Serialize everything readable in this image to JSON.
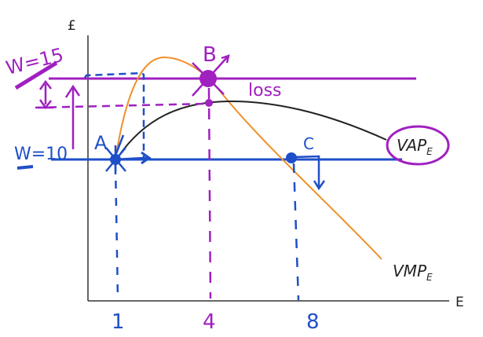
{
  "axes": {
    "y_label": "£",
    "x_label": "E"
  },
  "wage_high": {
    "label": "W=15",
    "color": "#a020c0"
  },
  "wage_low": {
    "label": "W=10",
    "color": "#1f4fc8"
  },
  "points": {
    "a": "A",
    "b": "B",
    "c": "C"
  },
  "loss_label": "loss",
  "curves": {
    "vap": {
      "label": "VAP",
      "subscript": "E",
      "color": "#222222"
    },
    "vmp": {
      "label": "VMP",
      "subscript": "E",
      "color": "#f0902a"
    }
  },
  "x_ticks": [
    "1",
    "4",
    "8"
  ]
}
